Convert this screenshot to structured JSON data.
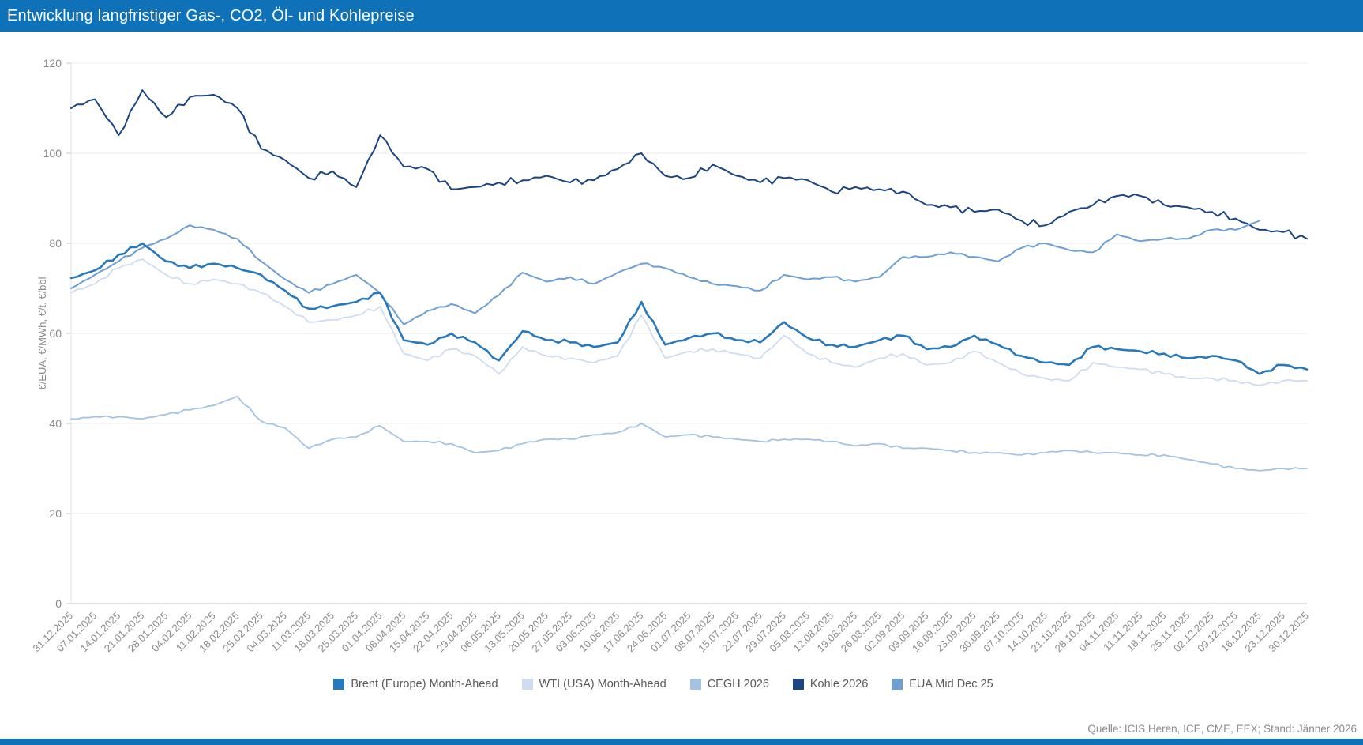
{
  "header": {
    "title": "Entwicklung langfristiger Gas-, CO2, Öl- und Kohlepreise",
    "bar_color": "#0f72b8"
  },
  "footer": {
    "source": "Quelle: ICIS Heren, ICE, CME, EEX; Stand: Jänner 2026"
  },
  "chart_data": {
    "type": "line",
    "title": "Entwicklung langfristiger Gas-, CO2, Öl- und Kohlepreise",
    "xlabel": "",
    "ylabel": "€/EUA, €/MWh, €/t, €/bbl",
    "ylim": [
      0,
      120
    ],
    "y_ticks": [
      0,
      20,
      40,
      60,
      80,
      100,
      120
    ],
    "grid": true,
    "legend_position": "bottom",
    "categories": [
      "31.12.2025",
      "07.01.2025",
      "14.01.2025",
      "21.01.2025",
      "28.01.2025",
      "04.02.2025",
      "11.02.2025",
      "18.02.2025",
      "25.02.2025",
      "04.03.2025",
      "11.03.2025",
      "18.03.2025",
      "25.03.2025",
      "01.04.2025",
      "08.04.2025",
      "15.04.2025",
      "22.04.2025",
      "29.04.2025",
      "06.05.2025",
      "13.05.2025",
      "20.05.2025",
      "27.05.2025",
      "03.06.2025",
      "10.06.2025",
      "17.06.2025",
      "24.06.2025",
      "01.07.2025",
      "08.07.2025",
      "15.07.2025",
      "22.07.2025",
      "29.07.2025",
      "05.08.2025",
      "12.08.2025",
      "19.08.2025",
      "26.08.2025",
      "02.09.2025",
      "09.09.2025",
      "16.09.2025",
      "23.09.2025",
      "30.09.2025",
      "07.10.2025",
      "14.10.2025",
      "21.10.2025",
      "28.10.2025",
      "04.11.2025",
      "11.11.2025",
      "18.11.2025",
      "25.11.2025",
      "02.12.2025",
      "09.12.2025",
      "16.12.2025",
      "23.12.2025",
      "30.12.2025"
    ],
    "series": [
      {
        "name": "Brent (Europe) Month-Ahead",
        "color": "#2878bc",
        "width": 2.6,
        "values": [
          72.3,
          74,
          77.5,
          80,
          76,
          74.5,
          75.5,
          74.5,
          73,
          69.5,
          65.5,
          66,
          67,
          69,
          58.5,
          57.5,
          60,
          58,
          54,
          60.5,
          58.5,
          58,
          57,
          58,
          67,
          57.5,
          59,
          60,
          58.5,
          58,
          62.5,
          59,
          57.5,
          57,
          58.5,
          59.5,
          56.5,
          57,
          59.5,
          57.5,
          55,
          53.5,
          53,
          57,
          56.5,
          56,
          55.5,
          54.5,
          55,
          54,
          51,
          53,
          52
        ]
      },
      {
        "name": "WTI (USA) Month-Ahead",
        "color": "#cfdcf0",
        "width": 1.8,
        "values": [
          69,
          71,
          74.5,
          76.5,
          73,
          71,
          72,
          71,
          69,
          66,
          62.5,
          63,
          64,
          66,
          55.5,
          54,
          56.5,
          55,
          51,
          57,
          55,
          54.5,
          53.5,
          55,
          64,
          54.5,
          56,
          56.5,
          55.5,
          54.5,
          59.5,
          55.5,
          53.5,
          52.5,
          54.5,
          55.5,
          53,
          53.5,
          56,
          53.5,
          51,
          50,
          49.5,
          53.5,
          52.5,
          52,
          51,
          50,
          50,
          49.5,
          48.5,
          49.5,
          49.5
        ]
      },
      {
        "name": "CEGH 2026",
        "color": "#a4c2e4",
        "width": 1.8,
        "values": [
          41,
          41.5,
          41.5,
          41,
          42,
          43,
          44,
          46,
          40.5,
          39,
          34.5,
          36.5,
          37,
          39.5,
          36,
          36,
          35.5,
          33.5,
          34,
          35.5,
          36.5,
          36.5,
          37.5,
          38,
          40,
          37,
          37.5,
          37,
          36.5,
          36,
          36.5,
          36.5,
          36,
          35,
          35.5,
          34.5,
          34.5,
          34,
          33.5,
          33.5,
          33,
          33.5,
          34,
          33.5,
          33.5,
          33,
          33,
          32,
          31,
          30,
          29.5,
          30,
          30
        ]
      },
      {
        "name": "Kohle 2026",
        "color": "#1c4482",
        "width": 2.0,
        "values": [
          110,
          112,
          104,
          114,
          108,
          112.5,
          113,
          110,
          101,
          98.5,
          94.5,
          96,
          92.5,
          104,
          97,
          96.5,
          92,
          92.5,
          93.5,
          94,
          95,
          93.5,
          94,
          96.5,
          100,
          95,
          94.5,
          97.5,
          95,
          93.5,
          94.5,
          94,
          91.5,
          92.5,
          92,
          91.5,
          88.5,
          88,
          87,
          87.5,
          85,
          84,
          87,
          88.5,
          90.5,
          90.5,
          88.5,
          88,
          87,
          85.5,
          83,
          82.5,
          81
        ]
      },
      {
        "name": "EUA Mid Dec 25",
        "color": "#6f9fd2",
        "width": 2.0,
        "values": [
          70,
          73,
          76,
          79,
          81,
          84,
          83,
          81,
          76,
          72,
          69,
          71,
          73,
          69,
          62,
          65,
          66.5,
          64.5,
          68.5,
          73.5,
          71.5,
          72.5,
          71,
          73.5,
          75.5,
          74.5,
          72.5,
          71,
          70.5,
          69.5,
          73,
          72,
          72.5,
          71.5,
          72.5,
          77,
          77,
          78,
          77,
          76,
          79,
          80,
          78.5,
          78,
          82,
          80.5,
          81,
          81,
          83,
          83,
          85,
          null,
          null
        ]
      }
    ]
  }
}
